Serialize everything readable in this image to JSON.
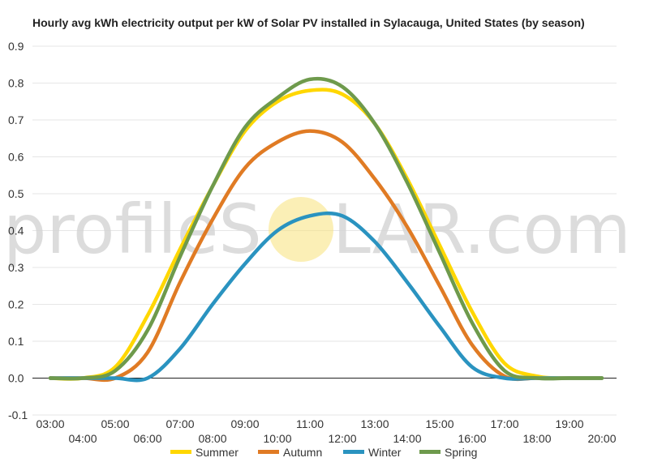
{
  "chart_data": {
    "type": "line",
    "title": "Hourly avg kWh electricity output per kW of Solar PV installed in Sylacauga, United States (by season)",
    "xlabel": "",
    "ylabel": "",
    "x_ticks": [
      "03:00",
      "04:00",
      "05:00",
      "06:00",
      "07:00",
      "08:00",
      "09:00",
      "10:00",
      "11:00",
      "12:00",
      "13:00",
      "14:00",
      "15:00",
      "16:00",
      "17:00",
      "18:00",
      "19:00",
      "20:00"
    ],
    "y_ticks": [
      "0.9",
      "0.8",
      "0.7",
      "0.6",
      "0.5",
      "0.4",
      "0.3",
      "0.2",
      "0.1",
      "0.0",
      "-0.1"
    ],
    "ylim": [
      -0.1,
      0.9
    ],
    "grid": "horizontal",
    "legend_position": "bottom",
    "watermark": {
      "left": "profileS",
      "right": "LAR.com",
      "sun_color": "#f7e27a"
    },
    "series": [
      {
        "name": "Summer",
        "color": "#ffd700",
        "values": [
          0.0,
          0.0,
          0.03,
          0.17,
          0.35,
          0.52,
          0.67,
          0.75,
          0.78,
          0.77,
          0.69,
          0.54,
          0.36,
          0.18,
          0.04,
          0.005,
          0.0,
          0.0
        ]
      },
      {
        "name": "Autumn",
        "color": "#e07b24",
        "values": [
          0.0,
          0.0,
          0.0,
          0.07,
          0.26,
          0.43,
          0.57,
          0.64,
          0.67,
          0.64,
          0.54,
          0.41,
          0.25,
          0.09,
          0.005,
          0.0,
          0.0,
          0.0
        ]
      },
      {
        "name": "Winter",
        "color": "#2a93c0",
        "values": [
          0.0,
          0.0,
          0.0,
          0.0,
          0.08,
          0.2,
          0.31,
          0.4,
          0.44,
          0.44,
          0.37,
          0.26,
          0.14,
          0.03,
          0.0,
          0.0,
          0.0,
          0.0
        ]
      },
      {
        "name": "Spring",
        "color": "#6e9a4c",
        "values": [
          0.0,
          0.0,
          0.02,
          0.13,
          0.33,
          0.52,
          0.68,
          0.76,
          0.81,
          0.79,
          0.69,
          0.53,
          0.34,
          0.15,
          0.02,
          0.0,
          0.0,
          0.0
        ]
      }
    ]
  }
}
